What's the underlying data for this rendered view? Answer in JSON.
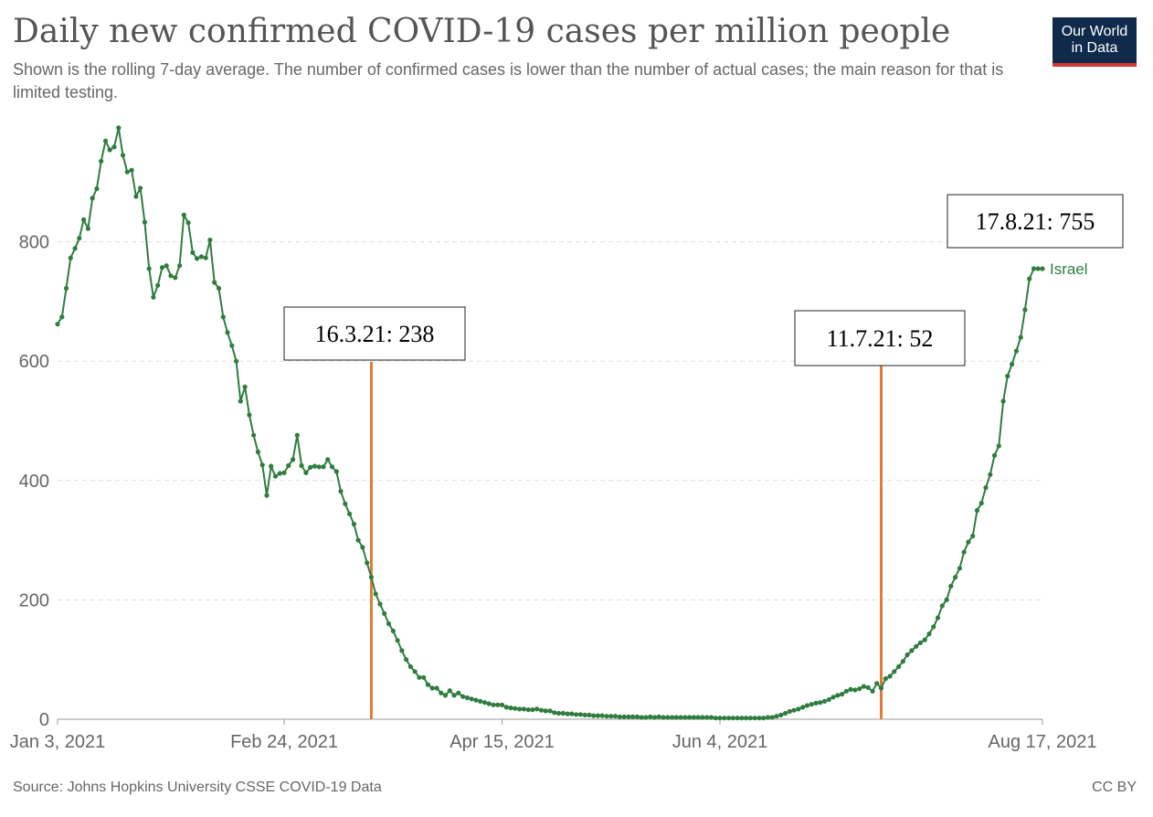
{
  "title": "Daily new confirmed COVID-19 cases per million people",
  "subtitle": "Shown is the rolling 7-day average. The number of confirmed cases is lower than the number of actual cases; the main reason for that is limited testing.",
  "logo": {
    "line1": "Our World",
    "line2": "in Data"
  },
  "footer": {
    "source": "Source: Johns Hopkins University CSSE COVID-19 Data",
    "license": "CC BY"
  },
  "colors": {
    "series": "#2e7d3f",
    "marker_line": "#e07b35",
    "grid": "#dddddd",
    "axis": "#999999",
    "logo_bg": "#0f2a4a",
    "logo_accent": "#d13a33"
  },
  "chart_data": {
    "type": "line",
    "xlabel": "",
    "ylabel": "",
    "ylim": [
      0,
      1000
    ],
    "yticks": [
      0,
      200,
      400,
      600,
      800
    ],
    "xlim": [
      "2021-01-03",
      "2021-08-17"
    ],
    "xticks": [
      {
        "date": "2021-01-03",
        "label": "Jan 3, 2021"
      },
      {
        "date": "2021-02-24",
        "label": "Feb 24, 2021"
      },
      {
        "date": "2021-04-15",
        "label": "Apr 15, 2021"
      },
      {
        "date": "2021-06-04",
        "label": "Jun 4, 2021"
      },
      {
        "date": "2021-08-17",
        "label": "Aug 17, 2021"
      }
    ],
    "grid": true,
    "series": [
      {
        "name": "Israel",
        "points": [
          [
            "2021-01-03",
            662
          ],
          [
            "2021-01-04",
            674
          ],
          [
            "2021-01-05",
            722
          ],
          [
            "2021-01-06",
            773
          ],
          [
            "2021-01-07",
            789
          ],
          [
            "2021-01-08",
            806
          ],
          [
            "2021-01-09",
            837
          ],
          [
            "2021-01-10",
            822
          ],
          [
            "2021-01-11",
            873
          ],
          [
            "2021-01-12",
            889
          ],
          [
            "2021-01-13",
            935
          ],
          [
            "2021-01-14",
            969
          ],
          [
            "2021-01-15",
            954
          ],
          [
            "2021-01-16",
            959
          ],
          [
            "2021-01-17",
            991
          ],
          [
            "2021-01-18",
            945
          ],
          [
            "2021-01-19",
            917
          ],
          [
            "2021-01-20",
            920
          ],
          [
            "2021-01-21",
            876
          ],
          [
            "2021-01-22",
            890
          ],
          [
            "2021-01-23",
            833
          ],
          [
            "2021-01-24",
            755
          ],
          [
            "2021-01-25",
            707
          ],
          [
            "2021-01-26",
            727
          ],
          [
            "2021-01-27",
            757
          ],
          [
            "2021-01-28",
            760
          ],
          [
            "2021-01-29",
            743
          ],
          [
            "2021-01-30",
            740
          ],
          [
            "2021-01-31",
            760
          ],
          [
            "2021-02-01",
            845
          ],
          [
            "2021-02-02",
            832
          ],
          [
            "2021-02-03",
            782
          ],
          [
            "2021-02-04",
            772
          ],
          [
            "2021-02-05",
            775
          ],
          [
            "2021-02-06",
            773
          ],
          [
            "2021-02-07",
            803
          ],
          [
            "2021-02-08",
            732
          ],
          [
            "2021-02-09",
            722
          ],
          [
            "2021-02-10",
            674
          ],
          [
            "2021-02-11",
            648
          ],
          [
            "2021-02-12",
            626
          ],
          [
            "2021-02-13",
            600
          ],
          [
            "2021-02-14",
            533
          ],
          [
            "2021-02-15",
            557
          ],
          [
            "2021-02-16",
            510
          ],
          [
            "2021-02-17",
            476
          ],
          [
            "2021-02-18",
            448
          ],
          [
            "2021-02-19",
            426
          ],
          [
            "2021-02-20",
            375
          ],
          [
            "2021-02-21",
            424
          ],
          [
            "2021-02-22",
            407
          ],
          [
            "2021-02-23",
            412
          ],
          [
            "2021-02-24",
            413
          ],
          [
            "2021-02-25",
            425
          ],
          [
            "2021-02-26",
            435
          ],
          [
            "2021-02-27",
            476
          ],
          [
            "2021-02-28",
            425
          ],
          [
            "2021-03-01",
            413
          ],
          [
            "2021-03-02",
            422
          ],
          [
            "2021-03-03",
            424
          ],
          [
            "2021-03-04",
            423
          ],
          [
            "2021-03-05",
            423
          ],
          [
            "2021-03-06",
            435
          ],
          [
            "2021-03-07",
            423
          ],
          [
            "2021-03-08",
            415
          ],
          [
            "2021-03-09",
            382
          ],
          [
            "2021-03-10",
            361
          ],
          [
            "2021-03-11",
            344
          ],
          [
            "2021-03-12",
            327
          ],
          [
            "2021-03-13",
            300
          ],
          [
            "2021-03-14",
            288
          ],
          [
            "2021-03-15",
            262
          ],
          [
            "2021-03-16",
            238
          ],
          [
            "2021-03-17",
            210
          ],
          [
            "2021-03-18",
            193
          ],
          [
            "2021-03-19",
            177
          ],
          [
            "2021-03-20",
            160
          ],
          [
            "2021-03-21",
            148
          ],
          [
            "2021-03-22",
            132
          ],
          [
            "2021-03-23",
            115
          ],
          [
            "2021-03-24",
            100
          ],
          [
            "2021-03-25",
            88
          ],
          [
            "2021-03-26",
            80
          ],
          [
            "2021-03-27",
            70
          ],
          [
            "2021-03-28",
            70
          ],
          [
            "2021-03-29",
            58
          ],
          [
            "2021-03-30",
            52
          ],
          [
            "2021-03-31",
            52
          ],
          [
            "2021-04-01",
            44
          ],
          [
            "2021-04-02",
            40
          ],
          [
            "2021-04-03",
            48
          ],
          [
            "2021-04-04",
            40
          ],
          [
            "2021-04-05",
            44
          ],
          [
            "2021-04-06",
            38
          ],
          [
            "2021-04-07",
            36
          ],
          [
            "2021-04-08",
            34
          ],
          [
            "2021-04-09",
            32
          ],
          [
            "2021-04-10",
            30
          ],
          [
            "2021-04-11",
            28
          ],
          [
            "2021-04-12",
            26
          ],
          [
            "2021-04-13",
            24
          ],
          [
            "2021-04-14",
            24
          ],
          [
            "2021-04-15",
            24
          ],
          [
            "2021-04-16",
            20
          ],
          [
            "2021-04-17",
            19
          ],
          [
            "2021-04-18",
            18
          ],
          [
            "2021-04-19",
            17
          ],
          [
            "2021-04-20",
            17
          ],
          [
            "2021-04-21",
            16
          ],
          [
            "2021-04-22",
            16
          ],
          [
            "2021-04-23",
            17
          ],
          [
            "2021-04-24",
            15
          ],
          [
            "2021-04-25",
            14
          ],
          [
            "2021-04-26",
            14
          ],
          [
            "2021-04-27",
            11
          ],
          [
            "2021-04-28",
            10
          ],
          [
            "2021-04-29",
            10
          ],
          [
            "2021-04-30",
            9
          ],
          [
            "2021-05-01",
            9
          ],
          [
            "2021-05-02",
            8
          ],
          [
            "2021-05-03",
            8
          ],
          [
            "2021-05-04",
            7
          ],
          [
            "2021-05-05",
            7
          ],
          [
            "2021-05-06",
            6
          ],
          [
            "2021-05-07",
            6
          ],
          [
            "2021-05-08",
            6
          ],
          [
            "2021-05-09",
            5
          ],
          [
            "2021-05-10",
            5
          ],
          [
            "2021-05-11",
            5
          ],
          [
            "2021-05-12",
            4
          ],
          [
            "2021-05-13",
            4
          ],
          [
            "2021-05-14",
            4
          ],
          [
            "2021-05-15",
            4
          ],
          [
            "2021-05-16",
            4
          ],
          [
            "2021-05-17",
            3
          ],
          [
            "2021-05-18",
            3
          ],
          [
            "2021-05-19",
            4
          ],
          [
            "2021-05-20",
            3
          ],
          [
            "2021-05-21",
            4
          ],
          [
            "2021-05-22",
            3
          ],
          [
            "2021-05-23",
            3
          ],
          [
            "2021-05-24",
            3
          ],
          [
            "2021-05-25",
            3
          ],
          [
            "2021-05-26",
            3
          ],
          [
            "2021-05-27",
            3
          ],
          [
            "2021-05-28",
            3
          ],
          [
            "2021-05-29",
            3
          ],
          [
            "2021-05-30",
            3
          ],
          [
            "2021-05-31",
            3
          ],
          [
            "2021-06-01",
            3
          ],
          [
            "2021-06-02",
            3
          ],
          [
            "2021-06-03",
            2
          ],
          [
            "2021-06-04",
            2
          ],
          [
            "2021-06-05",
            2
          ],
          [
            "2021-06-06",
            2
          ],
          [
            "2021-06-07",
            2
          ],
          [
            "2021-06-08",
            2
          ],
          [
            "2021-06-09",
            2
          ],
          [
            "2021-06-10",
            2
          ],
          [
            "2021-06-11",
            2
          ],
          [
            "2021-06-12",
            2
          ],
          [
            "2021-06-13",
            2
          ],
          [
            "2021-06-14",
            2
          ],
          [
            "2021-06-15",
            3
          ],
          [
            "2021-06-16",
            3
          ],
          [
            "2021-06-17",
            5
          ],
          [
            "2021-06-18",
            7
          ],
          [
            "2021-06-19",
            10
          ],
          [
            "2021-06-20",
            13
          ],
          [
            "2021-06-21",
            15
          ],
          [
            "2021-06-22",
            17
          ],
          [
            "2021-06-23",
            20
          ],
          [
            "2021-06-24",
            23
          ],
          [
            "2021-06-25",
            25
          ],
          [
            "2021-06-26",
            27
          ],
          [
            "2021-06-27",
            28
          ],
          [
            "2021-06-28",
            30
          ],
          [
            "2021-06-29",
            33
          ],
          [
            "2021-06-30",
            37
          ],
          [
            "2021-07-01",
            40
          ],
          [
            "2021-07-02",
            42
          ],
          [
            "2021-07-03",
            47
          ],
          [
            "2021-07-04",
            50
          ],
          [
            "2021-07-05",
            49
          ],
          [
            "2021-07-06",
            51
          ],
          [
            "2021-07-07",
            55
          ],
          [
            "2021-07-08",
            53
          ],
          [
            "2021-07-09",
            47
          ],
          [
            "2021-07-10",
            60
          ],
          [
            "2021-07-11",
            52
          ],
          [
            "2021-07-12",
            68
          ],
          [
            "2021-07-13",
            72
          ],
          [
            "2021-07-14",
            80
          ],
          [
            "2021-07-15",
            88
          ],
          [
            "2021-07-16",
            97
          ],
          [
            "2021-07-17",
            108
          ],
          [
            "2021-07-18",
            115
          ],
          [
            "2021-07-19",
            122
          ],
          [
            "2021-07-20",
            128
          ],
          [
            "2021-07-21",
            133
          ],
          [
            "2021-07-22",
            143
          ],
          [
            "2021-07-23",
            155
          ],
          [
            "2021-07-24",
            170
          ],
          [
            "2021-07-25",
            190
          ],
          [
            "2021-07-26",
            200
          ],
          [
            "2021-07-27",
            223
          ],
          [
            "2021-07-28",
            238
          ],
          [
            "2021-07-29",
            253
          ],
          [
            "2021-07-30",
            280
          ],
          [
            "2021-07-31",
            297
          ],
          [
            "2021-08-01",
            307
          ],
          [
            "2021-08-02",
            350
          ],
          [
            "2021-08-03",
            362
          ],
          [
            "2021-08-04",
            388
          ],
          [
            "2021-08-05",
            410
          ],
          [
            "2021-08-06",
            442
          ],
          [
            "2021-08-07",
            458
          ],
          [
            "2021-08-08",
            533
          ],
          [
            "2021-08-09",
            575
          ],
          [
            "2021-08-10",
            595
          ],
          [
            "2021-08-11",
            617
          ],
          [
            "2021-08-12",
            640
          ],
          [
            "2021-08-13",
            686
          ],
          [
            "2021-08-14",
            738
          ],
          [
            "2021-08-15",
            755
          ],
          [
            "2021-08-16",
            755
          ],
          [
            "2021-08-17",
            755
          ]
        ]
      }
    ],
    "annotations": [
      {
        "date": "2021-03-16",
        "value": 238,
        "text": "16.3.21: 238",
        "vertical_line": true
      },
      {
        "date": "2021-07-11",
        "value": 52,
        "text": "11.7.21: 52",
        "vertical_line": true
      },
      {
        "date": "2021-08-17",
        "value": 755,
        "text": "17.8.21: 755",
        "vertical_line": false
      }
    ]
  }
}
